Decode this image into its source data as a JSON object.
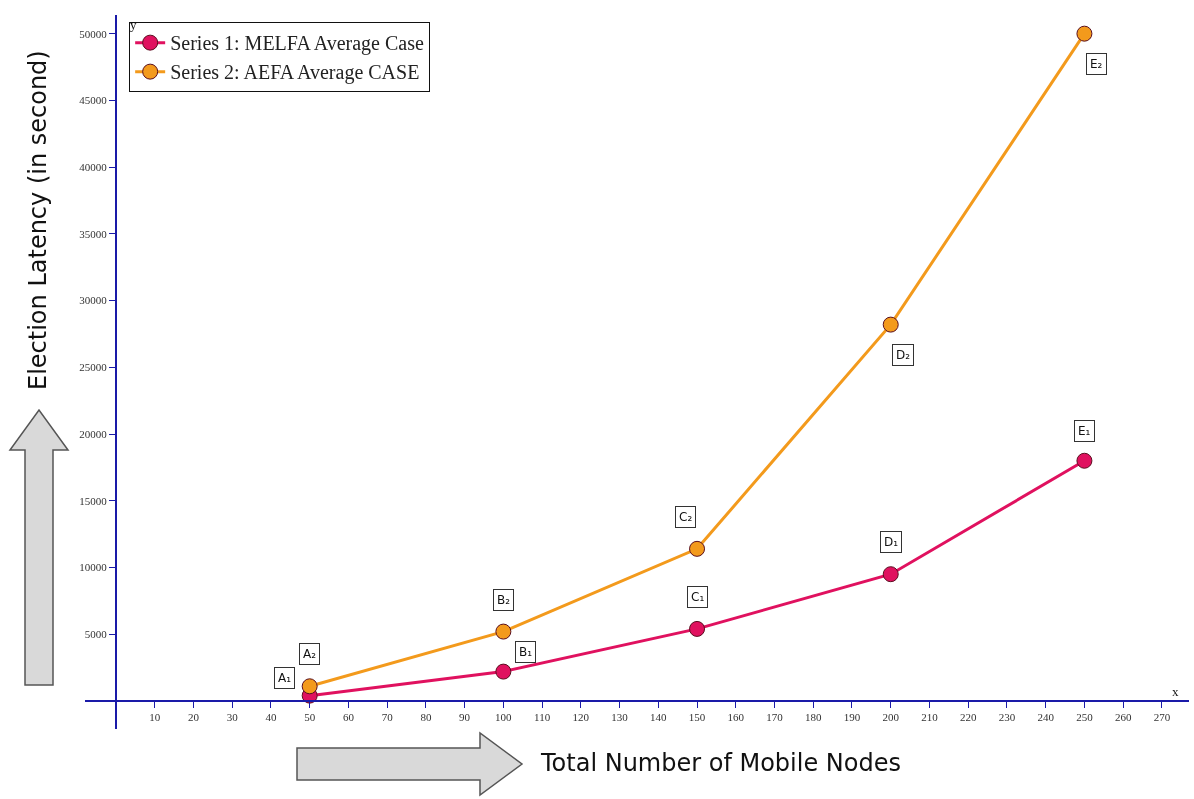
{
  "chart_data": {
    "type": "line",
    "xlabel": "Total Number of Mobile Nodes",
    "ylabel": "Election Latency (in second)",
    "x": [
      50,
      100,
      150,
      200,
      250
    ],
    "series": [
      {
        "name": "Series 1: MELFA Average Case",
        "color": "#e0115f",
        "values": [
          400,
          2200,
          5400,
          9500,
          18000
        ]
      },
      {
        "name": "Series 2: AEFA Average CASE",
        "color": "#f39a1c",
        "values": [
          1100,
          5200,
          11400,
          28200,
          50000
        ]
      }
    ],
    "xlim": [
      -8,
      277
    ],
    "ylim": [
      -2100,
      51400
    ],
    "xticks": [
      10,
      20,
      30,
      40,
      50,
      60,
      70,
      80,
      90,
      100,
      110,
      120,
      130,
      140,
      150,
      160,
      170,
      180,
      190,
      200,
      210,
      220,
      230,
      240,
      250,
      260,
      270
    ],
    "yticks": [
      5000,
      10000,
      15000,
      20000,
      25000,
      30000,
      35000,
      40000,
      45000,
      50000
    ],
    "annotations": [
      {
        "text": "A₁",
        "x": 50,
        "y": 400
      },
      {
        "text": "A₂",
        "x": 50,
        "y": 1100
      },
      {
        "text": "B₁",
        "x": 100,
        "y": 2200
      },
      {
        "text": "B₂",
        "x": 100,
        "y": 5200
      },
      {
        "text": "C₁",
        "x": 150,
        "y": 5400
      },
      {
        "text": "C₂",
        "x": 150,
        "y": 11400
      },
      {
        "text": "D₁",
        "x": 200,
        "y": 9500
      },
      {
        "text": "D₂",
        "x": 200,
        "y": 28200
      },
      {
        "text": "E₁",
        "x": 250,
        "y": 18000
      },
      {
        "text": "E₂",
        "x": 250,
        "y": 50000
      },
      "y",
      "x"
    ],
    "legend": "top left",
    "marker": "circle",
    "line_style": "solid"
  }
}
